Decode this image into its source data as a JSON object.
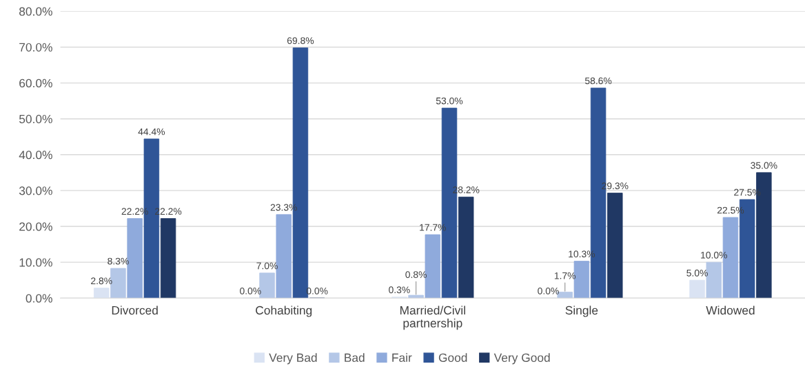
{
  "chart_data": {
    "type": "bar",
    "categories": [
      "Divorced",
      "Cohabiting",
      "Married/Civil\npartnership",
      "Single",
      "Widowed"
    ],
    "series": [
      {
        "name": "Very Bad",
        "color": "#dae3f3",
        "values": [
          2.8,
          0.0,
          0.3,
          0.0,
          5.0
        ],
        "value_labels": [
          "2.8%",
          "0.0%",
          "0.3%",
          "0.0%",
          "5.0%"
        ]
      },
      {
        "name": "Bad",
        "color": "#b4c7e7",
        "values": [
          8.3,
          7.0,
          0.8,
          1.7,
          10.0
        ],
        "value_labels": [
          "8.3%",
          "7.0%",
          "0.8%",
          "1.7%",
          "10.0%"
        ]
      },
      {
        "name": "Fair",
        "color": "#8faadc",
        "values": [
          22.2,
          23.3,
          17.7,
          10.3,
          22.5
        ],
        "value_labels": [
          "22.2%",
          "23.3%",
          "17.7%",
          "10.3%",
          "22.5%"
        ]
      },
      {
        "name": "Good",
        "color": "#2f5597",
        "values": [
          44.4,
          69.8,
          53.0,
          58.6,
          27.5
        ],
        "value_labels": [
          "44.4%",
          "69.8%",
          "53.0%",
          "58.6%",
          "27.5%"
        ]
      },
      {
        "name": "Very Good",
        "color": "#203864",
        "values": [
          22.2,
          0.0,
          28.2,
          29.3,
          35.0
        ],
        "value_labels": [
          "22.2%",
          "0.0%",
          "28.2%",
          "29.3%",
          "35.0%"
        ]
      }
    ],
    "ylim": [
      0,
      80
    ],
    "yticks": [
      {
        "value": 0,
        "label": "0.0%"
      },
      {
        "value": 10,
        "label": "10.0%"
      },
      {
        "value": 20,
        "label": "20.0%"
      },
      {
        "value": 30,
        "label": "30.0%"
      },
      {
        "value": 40,
        "label": "40.0%"
      },
      {
        "value": 50,
        "label": "50.0%"
      },
      {
        "value": 60,
        "label": "60.0%"
      },
      {
        "value": 70,
        "label": "70.0%"
      },
      {
        "value": 80,
        "label": "80.0%"
      }
    ],
    "grid": "y",
    "legend": "bottom"
  }
}
